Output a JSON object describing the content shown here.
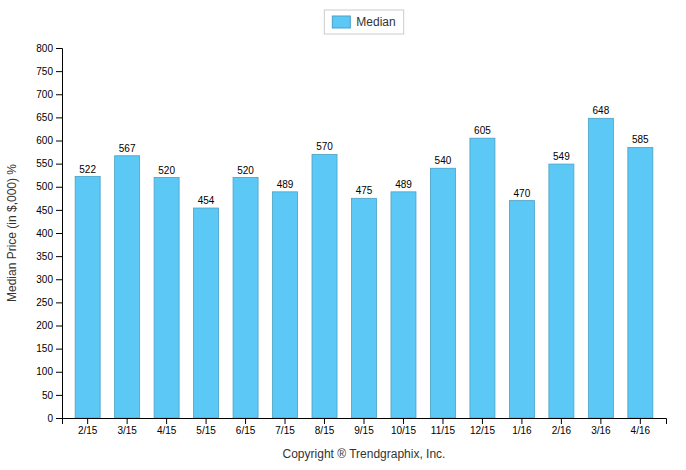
{
  "chart_data": {
    "type": "bar",
    "categories": [
      "2/15",
      "3/15",
      "4/15",
      "5/15",
      "6/15",
      "7/15",
      "8/15",
      "9/15",
      "10/15",
      "11/15",
      "12/15",
      "1/16",
      "2/16",
      "3/16",
      "4/16"
    ],
    "series": [
      {
        "name": "Median",
        "color": "#5BC8F5",
        "values": [
          522,
          567,
          520,
          454,
          520,
          489,
          570,
          475,
          489,
          540,
          605,
          470,
          549,
          648,
          585
        ]
      }
    ],
    "xlabel": "Copyright ® Trendgraphix, Inc.",
    "ylabel": "Median Price (in $,000) %",
    "ylim": [
      0,
      800
    ],
    "yticks": [
      0,
      50,
      100,
      150,
      200,
      250,
      300,
      350,
      400,
      450,
      500,
      550,
      600,
      650,
      700,
      750,
      800
    ],
    "grid": false,
    "legend": "top",
    "data_labels": true
  }
}
